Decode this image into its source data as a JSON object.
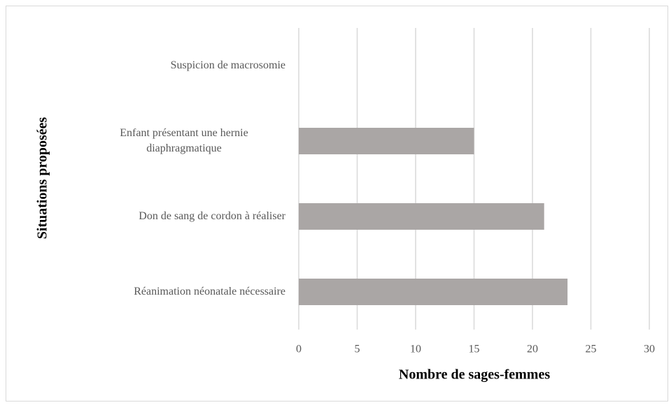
{
  "chart_data": {
    "type": "bar",
    "orientation": "horizontal",
    "xlabel": "Nombre de sages-femmes",
    "ylabel": "Situations proposées",
    "categories": [
      "Suspicion de macrosomie",
      "Enfant présentant une hernie diaphragmatique",
      "Don de sang de cordon à réaliser",
      "Réanimation néonatale nécessaire"
    ],
    "values": [
      0,
      15,
      21,
      23
    ],
    "color": "#aaa6a5",
    "xlim": [
      0,
      30
    ],
    "xticks": [
      0,
      5,
      10,
      15,
      20,
      25,
      30
    ],
    "grid": true
  }
}
